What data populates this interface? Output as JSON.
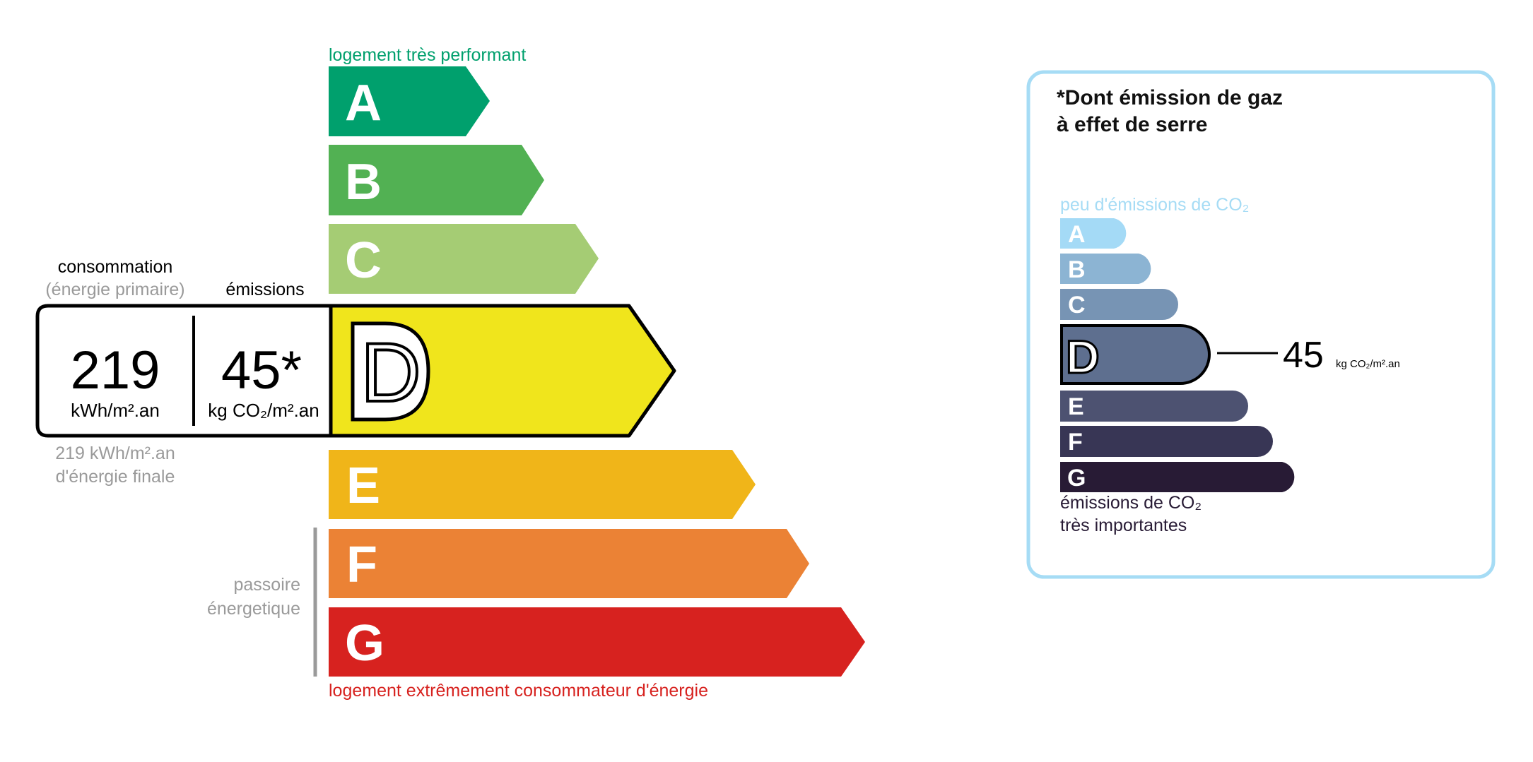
{
  "energy": {
    "top_label": "logement très performant",
    "bottom_label": "logement extrêmement consommateur d'énergie",
    "passoire_label": [
      "passoire",
      "énergetique"
    ],
    "classes": [
      {
        "letter": "A",
        "color": "#00a06d"
      },
      {
        "letter": "B",
        "color": "#52b153"
      },
      {
        "letter": "C",
        "color": "#a5cc74"
      },
      {
        "letter": "D",
        "color": "#f0e51c"
      },
      {
        "letter": "E",
        "color": "#f0b519"
      },
      {
        "letter": "F",
        "color": "#eb8235"
      },
      {
        "letter": "G",
        "color": "#d7221f"
      }
    ],
    "current_class": "D",
    "consumption_header": "consommation",
    "consumption_subheader": "(énergie primaire)",
    "emissions_header": "émissions",
    "consumption_value": "219",
    "consumption_unit": "kWh/m².an",
    "emissions_value": "45*",
    "emissions_unit": "kg CO₂/m².an",
    "final_energy_line1": "219 kWh/m².an",
    "final_energy_line2": "d'énergie finale"
  },
  "ges": {
    "title_line1": "*Dont émission de gaz",
    "title_line2": "à effet de serre",
    "top_label": "peu d'émissions de CO₂",
    "bottom_label_line1": "émissions de CO₂",
    "bottom_label_line2": "très importantes",
    "classes": [
      {
        "letter": "A",
        "color": "#a4daf6"
      },
      {
        "letter": "B",
        "color": "#8cb4d3"
      },
      {
        "letter": "C",
        "color": "#7794b4"
      },
      {
        "letter": "D",
        "color": "#5e6f8f"
      },
      {
        "letter": "E",
        "color": "#4d5271"
      },
      {
        "letter": "F",
        "color": "#383655"
      },
      {
        "letter": "G",
        "color": "#281b35"
      }
    ],
    "current_class": "D",
    "value": "45",
    "unit": "kg CO₂/m².an",
    "border_color": "#a6dcf5"
  }
}
